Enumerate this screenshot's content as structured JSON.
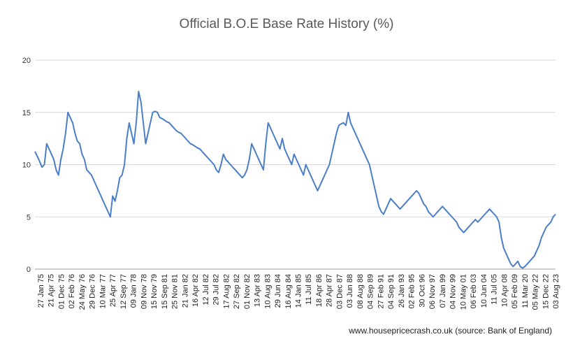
{
  "chart_data": {
    "type": "line",
    "title": "Official B.O.E Base Rate History (%)",
    "xlabel": "",
    "ylabel": "",
    "ylim": [
      0,
      20
    ],
    "yticks": [
      0,
      5,
      10,
      15,
      20
    ],
    "grid": true,
    "legend": "none",
    "x_tick_labels": [
      "27 Jan 75",
      "21 Apr 75",
      "01 Dec 75",
      "02 Feb 76",
      "24 May 76",
      "29 Dec 76",
      "10 Mar 77",
      "25 Apr 77",
      "12 Sep 77",
      "09 Jan 78",
      "09 Nov 78",
      "15 Nov 79",
      "15 Sep 81",
      "25 Nov 81",
      "21 Jan 82",
      "16 Apr 82",
      "12 Jul 82",
      "29 Jul 82",
      "17 Aug 82",
      "27 Sep 82",
      "01 Nov 82",
      "13 Apr 83",
      "10 Aug 83",
      "29 Jun 84",
      "16 Aug 84",
      "14 Jan 85",
      "11 Jul 85",
      "18 Apr 86",
      "28 Apr 87",
      "03 Dec 87",
      "03 Jun 88",
      "08 Aug 88",
      "04 Sep 89",
      "27 Feb 91",
      "04 Sep 91",
      "26 Jan 93",
      "02 Feb 95",
      "30 Oct 96",
      "06 Nov 97",
      "07 Jan 99",
      "04 Nov 99",
      "10 May 01",
      "06 Feb 03",
      "10 Jun 04",
      "11 Jul 05",
      "10 Apr 08",
      "05 Feb 09",
      "11 Mar 20",
      "05 May 22",
      "15 Dec 22",
      "03 Aug 23"
    ],
    "series": [
      {
        "color": "#4a7fc8",
        "values": [
          11.25,
          10.8,
          10.3,
          9.75,
          10.0,
          12.0,
          11.5,
          11.0,
          10.5,
          9.5,
          9.0,
          10.5,
          11.5,
          13.0,
          15.0,
          14.5,
          14.0,
          13.0,
          12.25,
          12.0,
          11.0,
          10.5,
          9.5,
          9.25,
          9.0,
          8.5,
          8.0,
          7.5,
          7.0,
          6.5,
          6.0,
          5.5,
          5.0,
          7.0,
          6.5,
          7.5,
          8.75,
          9.0,
          10.0,
          12.5,
          14.0,
          13.0,
          12.0,
          14.0,
          17.0,
          16.0,
          14.0,
          12.0,
          13.0,
          14.0,
          15.0,
          15.1,
          15.0,
          14.5,
          14.4,
          14.25,
          14.1,
          14.0,
          13.75,
          13.5,
          13.25,
          13.1,
          13.0,
          12.75,
          12.5,
          12.25,
          12.0,
          11.9,
          11.75,
          11.6,
          11.5,
          11.25,
          11.0,
          10.75,
          10.5,
          10.25,
          10.0,
          9.5,
          9.25,
          10.0,
          11.0,
          10.5,
          10.25,
          10.0,
          9.75,
          9.5,
          9.25,
          9.0,
          8.75,
          9.0,
          9.5,
          10.5,
          12.0,
          11.5,
          11.0,
          10.5,
          10.0,
          9.5,
          12.0,
          14.0,
          13.5,
          13.0,
          12.5,
          12.0,
          11.5,
          12.5,
          11.5,
          11.0,
          10.5,
          10.0,
          11.0,
          10.5,
          10.0,
          9.5,
          9.0,
          10.0,
          9.5,
          9.0,
          8.5,
          8.0,
          7.5,
          8.0,
          8.5,
          9.0,
          9.5,
          10.0,
          11.0,
          12.0,
          13.0,
          13.75,
          13.9,
          14.0,
          13.75,
          15.0,
          14.0,
          13.5,
          13.0,
          12.5,
          12.0,
          11.5,
          11.0,
          10.5,
          10.0,
          9.0,
          8.0,
          7.0,
          6.0,
          5.5,
          5.25,
          5.75,
          6.25,
          6.75,
          6.5,
          6.25,
          6.0,
          5.75,
          6.0,
          6.25,
          6.5,
          6.75,
          7.0,
          7.25,
          7.5,
          7.25,
          6.75,
          6.25,
          6.0,
          5.5,
          5.25,
          5.0,
          5.25,
          5.5,
          5.75,
          6.0,
          5.75,
          5.5,
          5.25,
          5.0,
          4.75,
          4.5,
          4.0,
          3.75,
          3.5,
          3.75,
          4.0,
          4.25,
          4.5,
          4.75,
          4.5,
          4.75,
          5.0,
          5.25,
          5.5,
          5.75,
          5.5,
          5.25,
          5.0,
          4.5,
          3.0,
          2.0,
          1.5,
          1.0,
          0.5,
          0.25,
          0.5,
          0.75,
          0.25,
          0.1,
          0.25,
          0.5,
          0.75,
          1.0,
          1.25,
          1.75,
          2.25,
          3.0,
          3.5,
          4.0,
          4.25,
          4.5,
          5.0,
          5.25
        ]
      }
    ]
  },
  "footer": {
    "source": "www.housepricecrash.co.uk (source: Bank of England)"
  }
}
